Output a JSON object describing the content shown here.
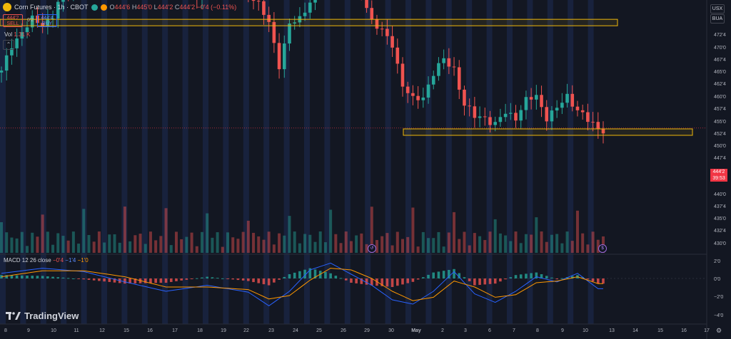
{
  "header": {
    "symbol_title": "Corn Futures · 1h · CBOT",
    "ohlc": {
      "o_label": "O",
      "o": "444'6",
      "h_label": "H",
      "h": "445'0",
      "l_label": "L",
      "l": "444'2",
      "c_label": "C",
      "c": "444'2",
      "change": "−0'4 (−0.11%)"
    }
  },
  "trade": {
    "sell_price": "444'2",
    "sell_label": "SELL",
    "spread": "0'2",
    "buy_price": "444'4",
    "buy_label": "BUY"
  },
  "volume": {
    "label": "Vol",
    "value": "1.31 K"
  },
  "macd": {
    "label": "MACD 12 26 close",
    "v1": "−0'4",
    "v2": "−1'4",
    "v3": "−1'0"
  },
  "axis": {
    "currency": "USX",
    "unit": "BUA",
    "price_labels": [
      "472'4",
      "470'0",
      "467'4",
      "465'0",
      "462'4",
      "460'0",
      "457'4",
      "455'0",
      "452'4",
      "450'0",
      "447'4",
      "440'0",
      "437'4",
      "435'0",
      "432'4",
      "430'0"
    ],
    "macd_labels": [
      "2'0",
      "0'0",
      "−2'0",
      "−4'0"
    ],
    "last_price": "444'2",
    "countdown": "39:53"
  },
  "time_labels": [
    "8",
    "9",
    "10",
    "11",
    "12",
    "15",
    "16",
    "17",
    "18",
    "19",
    "22",
    "23",
    "24",
    "25",
    "26",
    "29",
    "30",
    "May",
    "2",
    "3",
    "6",
    "7",
    "8",
    "9",
    "10",
    "13",
    "14",
    "15",
    "16",
    "17",
    "20"
  ],
  "brand": "TradingView",
  "colors": {
    "background": "#131722",
    "up": "#26a69a",
    "down": "#ef5350",
    "zone": "#f0b90b",
    "macd": "#2962ff",
    "signal": "#ff9800",
    "last_price": "#f23645"
  },
  "chart_data": {
    "type": "candlestick",
    "interval": "1h",
    "y_range_price": [
      429.5,
      476
    ],
    "zones": [
      {
        "from": 470.3,
        "to": 471.2
      },
      {
        "from": 442.8,
        "to": 444.0
      }
    ],
    "price_path": [
      [
        0,
        458
      ],
      [
        2,
        465
      ],
      [
        4,
        468
      ],
      [
        6,
        471
      ],
      [
        8,
        470
      ],
      [
        10,
        472
      ],
      [
        12,
        478
      ],
      [
        14,
        480
      ],
      [
        16,
        484
      ],
      [
        18,
        486
      ],
      [
        20,
        485
      ],
      [
        22,
        488
      ],
      [
        25,
        490
      ],
      [
        28,
        489
      ],
      [
        30,
        486
      ],
      [
        32,
        484
      ],
      [
        34,
        481
      ],
      [
        36,
        482
      ],
      [
        38,
        477
      ],
      [
        40,
        481
      ],
      [
        42,
        486
      ],
      [
        44,
        488
      ],
      [
        46,
        481
      ],
      [
        48,
        478
      ],
      [
        50,
        475
      ],
      [
        52,
        470
      ],
      [
        54,
        460
      ],
      [
        56,
        470
      ],
      [
        58,
        471
      ],
      [
        60,
        476
      ],
      [
        62,
        481
      ],
      [
        64,
        484
      ],
      [
        66,
        480
      ],
      [
        68,
        479
      ],
      [
        70,
        478
      ],
      [
        72,
        471
      ],
      [
        74,
        468
      ],
      [
        76,
        465
      ],
      [
        78,
        455
      ],
      [
        80,
        451
      ],
      [
        82,
        452
      ],
      [
        84,
        458
      ],
      [
        86,
        461
      ],
      [
        88,
        459
      ],
      [
        90,
        450
      ],
      [
        92,
        447
      ],
      [
        94,
        447
      ],
      [
        96,
        445
      ],
      [
        98,
        448
      ],
      [
        100,
        447
      ],
      [
        102,
        451
      ],
      [
        104,
        452
      ],
      [
        106,
        447
      ],
      [
        108,
        449
      ],
      [
        110,
        452
      ],
      [
        112,
        449
      ],
      [
        114,
        446
      ],
      [
        116,
        444
      ]
    ],
    "macd_path": [
      [
        0,
        0.6
      ],
      [
        8,
        1.2
      ],
      [
        16,
        0.8
      ],
      [
        24,
        -0.4
      ],
      [
        32,
        -1.5
      ],
      [
        40,
        -0.8
      ],
      [
        48,
        -1.6
      ],
      [
        52,
        -3.2
      ],
      [
        56,
        -1.5
      ],
      [
        60,
        1.0
      ],
      [
        64,
        1.8
      ],
      [
        68,
        0.5
      ],
      [
        72,
        -0.8
      ],
      [
        76,
        -2.5
      ],
      [
        80,
        -3.0
      ],
      [
        84,
        -1.5
      ],
      [
        88,
        0.8
      ],
      [
        92,
        -1.8
      ],
      [
        96,
        -2.8
      ],
      [
        100,
        -1.5
      ],
      [
        104,
        0.2
      ],
      [
        108,
        -0.4
      ],
      [
        112,
        0.6
      ],
      [
        116,
        -1.2
      ]
    ],
    "signal_path": [
      [
        0,
        0.2
      ],
      [
        8,
        0.9
      ],
      [
        16,
        0.9
      ],
      [
        24,
        0.2
      ],
      [
        32,
        -1.0
      ],
      [
        40,
        -1.0
      ],
      [
        48,
        -1.3
      ],
      [
        52,
        -2.4
      ],
      [
        56,
        -2.0
      ],
      [
        60,
        -0.2
      ],
      [
        64,
        1.2
      ],
      [
        68,
        1.0
      ],
      [
        72,
        0.0
      ],
      [
        76,
        -1.5
      ],
      [
        80,
        -2.6
      ],
      [
        84,
        -2.2
      ],
      [
        88,
        -0.3
      ],
      [
        92,
        -1.0
      ],
      [
        96,
        -2.2
      ],
      [
        100,
        -1.9
      ],
      [
        104,
        -0.5
      ],
      [
        108,
        -0.3
      ],
      [
        112,
        0.2
      ],
      [
        116,
        -0.6
      ]
    ]
  }
}
